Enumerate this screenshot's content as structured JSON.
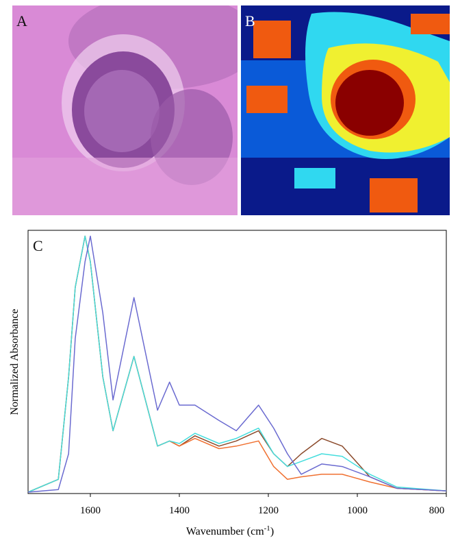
{
  "panels": [
    "A",
    "B"
  ],
  "chart_data": {
    "type": "line",
    "panel_label": "C",
    "x_label": {
      "text": "Wavenumber (cm",
      "sup": "-1",
      "end": ")"
    },
    "y_label": "Normalized Absorbance",
    "xlim": [
      1740,
      800
    ],
    "ylim": [
      0,
      1.02
    ],
    "xticks": [
      1600,
      1400,
      1200,
      1000,
      800
    ],
    "x": [
      1740,
      1672,
      1649,
      1634,
      1612,
      1600,
      1572,
      1549,
      1502,
      1449,
      1422,
      1400,
      1365,
      1311,
      1272,
      1222,
      1188,
      1157,
      1126,
      1080,
      1034,
      972,
      911,
      800
    ],
    "series": [
      {
        "color": "#8b4a2b",
        "values": [
          0,
          0.05,
          0.45,
          0.8,
          1.0,
          0.9,
          0.45,
          0.24,
          0.53,
          0.18,
          0.2,
          0.18,
          0.22,
          0.18,
          0.2,
          0.24,
          0.15,
          0.1,
          0.15,
          0.21,
          0.18,
          0.06,
          0.015,
          0.005
        ]
      },
      {
        "color": "#f07030",
        "values": [
          0,
          0.05,
          0.45,
          0.8,
          1.0,
          0.9,
          0.45,
          0.24,
          0.53,
          0.18,
          0.2,
          0.18,
          0.21,
          0.17,
          0.18,
          0.2,
          0.1,
          0.05,
          0.06,
          0.07,
          0.07,
          0.04,
          0.015,
          0.005
        ]
      },
      {
        "color": "#44dddd",
        "values": [
          0,
          0.05,
          0.45,
          0.8,
          1.0,
          0.9,
          0.45,
          0.24,
          0.53,
          0.18,
          0.2,
          0.19,
          0.23,
          0.19,
          0.21,
          0.25,
          0.15,
          0.1,
          0.12,
          0.15,
          0.14,
          0.07,
          0.02,
          0.005
        ]
      },
      {
        "color": "#6a6ad0",
        "values": [
          0,
          0.01,
          0.15,
          0.6,
          0.9,
          1.0,
          0.7,
          0.36,
          0.76,
          0.32,
          0.43,
          0.34,
          0.34,
          0.28,
          0.24,
          0.34,
          0.25,
          0.15,
          0.07,
          0.11,
          0.1,
          0.06,
          0.015,
          0.005
        ]
      }
    ]
  }
}
